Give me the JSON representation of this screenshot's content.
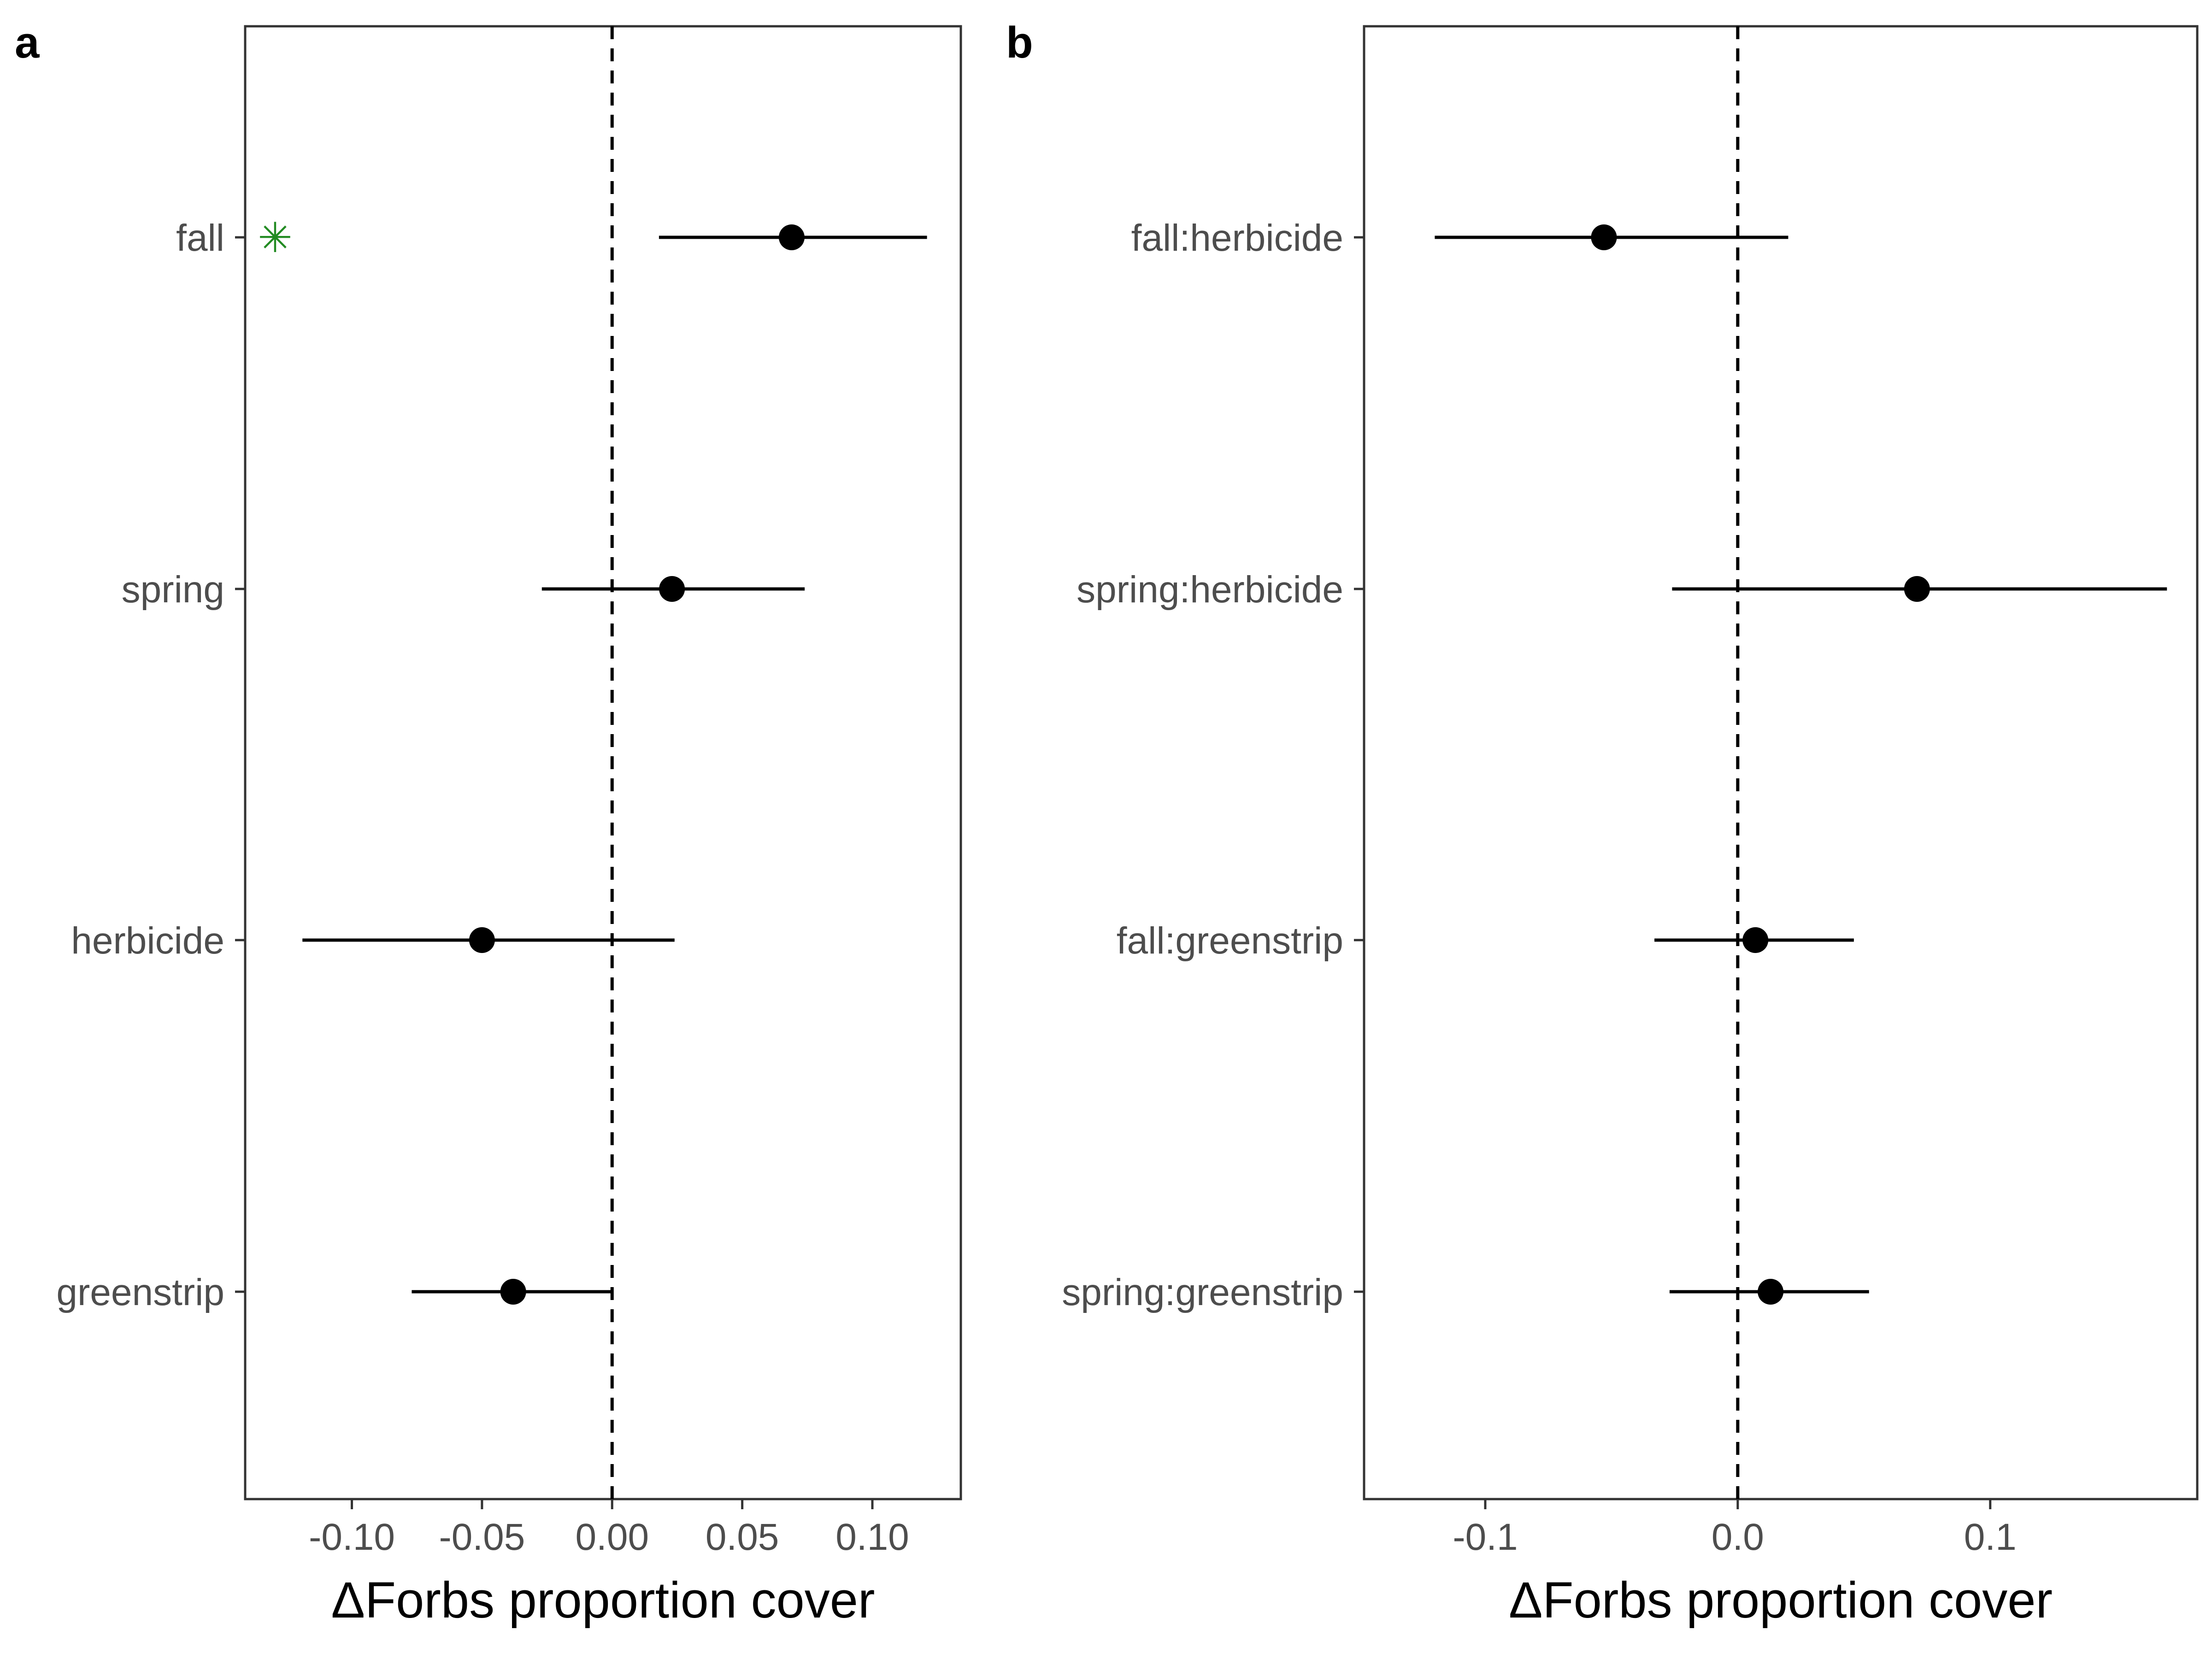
{
  "chart_data": [
    {
      "panel": "a",
      "type": "scatter",
      "xlabel": "ΔForbs proportion cover",
      "xlim": [
        -0.141,
        0.134
      ],
      "xticks": [
        -0.1,
        -0.05,
        0.0,
        0.05,
        0.1
      ],
      "xtick_labels": [
        "-0.10",
        "-0.05",
        "0.00",
        "0.05",
        "0.10"
      ],
      "reference_line": 0,
      "categories": [
        "fall",
        "spring",
        "herbicide",
        "greenstrip"
      ],
      "estimates": [
        0.069,
        0.023,
        -0.05,
        -0.038
      ],
      "lower": [
        0.018,
        -0.027,
        -0.119,
        -0.077
      ],
      "upper": [
        0.121,
        0.074,
        0.024,
        0.0
      ],
      "significance_marks": [
        "✳",
        "",
        "",
        ""
      ],
      "significance_color": "#228B22",
      "grid": false
    },
    {
      "panel": "b",
      "type": "scatter",
      "xlabel": "ΔForbs proportion cover",
      "xlim": [
        -0.148,
        0.182
      ],
      "xticks": [
        -0.1,
        0.0,
        0.1
      ],
      "xtick_labels": [
        "-0.1",
        "0.0",
        "0.1"
      ],
      "reference_line": 0,
      "categories": [
        "fall:herbicide",
        "spring:herbicide",
        "fall:greenstrip",
        "spring:greenstrip"
      ],
      "estimates": [
        -0.053,
        0.071,
        0.007,
        0.013
      ],
      "lower": [
        -0.12,
        -0.026,
        -0.033,
        -0.027
      ],
      "upper": [
        0.02,
        0.17,
        0.046,
        0.052
      ],
      "significance_marks": [
        "",
        "",
        "",
        ""
      ],
      "significance_color": "#228B22",
      "grid": false
    }
  ]
}
